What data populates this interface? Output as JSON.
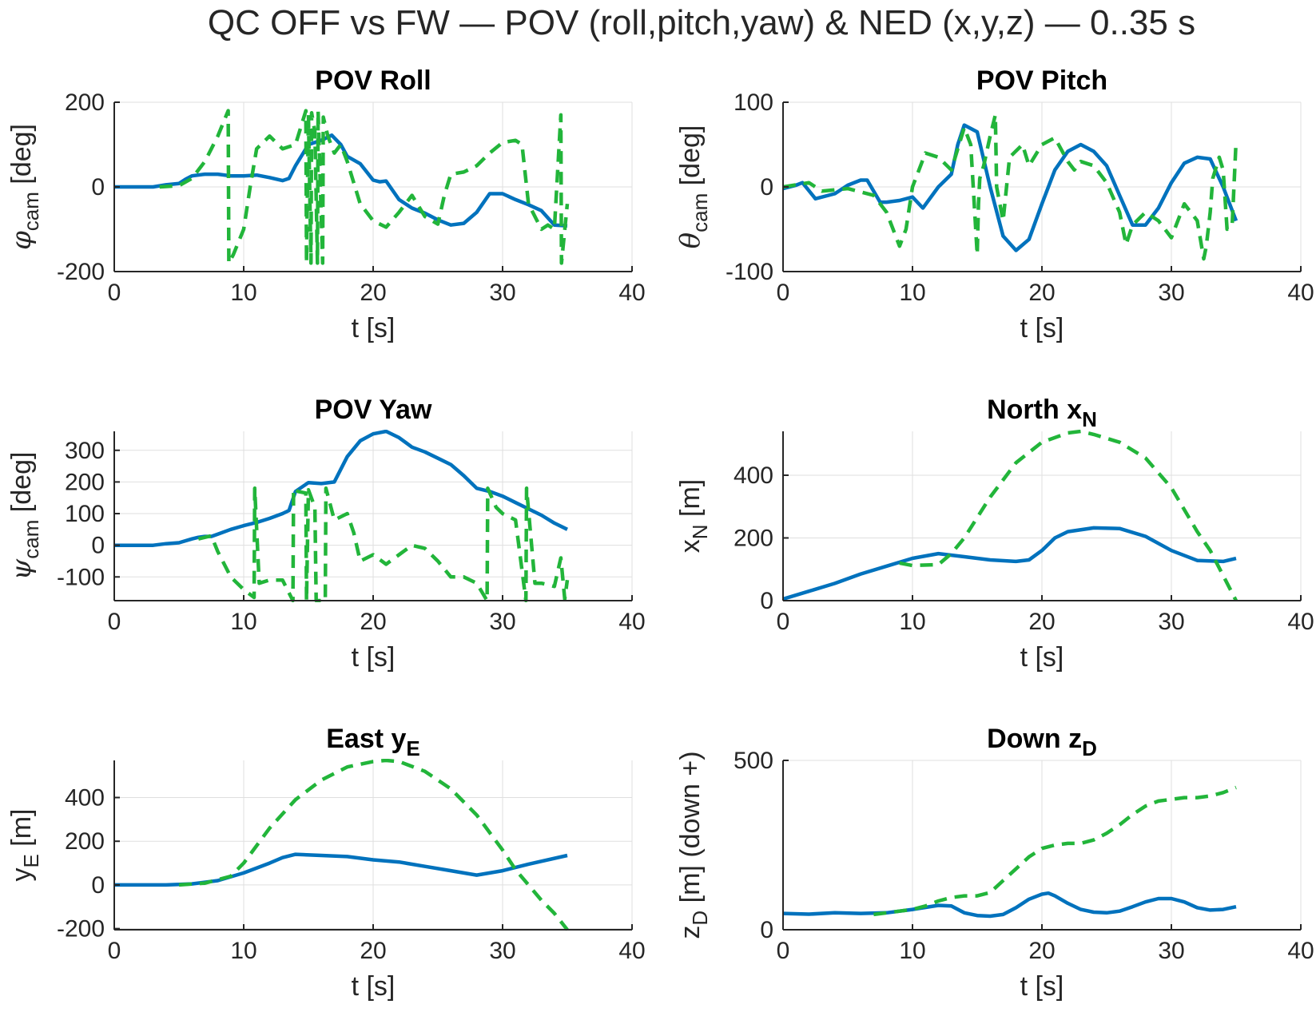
{
  "figure": {
    "title": "QC OFF vs FW — POV (roll,pitch,yaw) & NED (x,y,z) — 0..35 s"
  },
  "colors": {
    "qc_off": "#0072BD",
    "fw": "#22B53A",
    "axis": "#262626",
    "grid": "#dfdfdf"
  },
  "chart_data": [
    {
      "id": "roll",
      "type": "line",
      "title": "POV Roll",
      "title_sub": "",
      "xlabel": "t [s]",
      "ylabel_parts": [
        [
          "φ",
          "sym"
        ],
        [
          "cam",
          "sub"
        ],
        [
          " [deg]",
          "n"
        ]
      ],
      "xlim": [
        0,
        40
      ],
      "ylim": [
        -200,
        200
      ],
      "xticks": [
        0,
        10,
        20,
        30,
        40
      ],
      "xtick_labels": [
        "0",
        "10",
        "20",
        "30",
        "40"
      ],
      "yticks": [
        -200,
        0,
        200
      ],
      "ytick_labels": [
        "-200",
        "0",
        "200"
      ],
      "grid": true,
      "series": [
        {
          "style": "solid",
          "color": "#0072BD",
          "x": [
            0,
            3,
            4,
            5,
            5.5,
            6,
            7,
            8,
            9,
            10,
            11,
            12,
            13,
            13.5,
            14,
            15,
            16,
            16.8,
            17.5,
            18,
            19,
            20,
            20.5,
            21,
            22,
            23,
            24,
            25,
            26,
            27,
            28,
            29,
            30,
            31,
            32,
            33,
            34,
            35
          ],
          "y": [
            0,
            0,
            5,
            8,
            18,
            26,
            30,
            30,
            26,
            26,
            28,
            22,
            15,
            20,
            50,
            100,
            110,
            122,
            100,
            72,
            55,
            16,
            12,
            14,
            -30,
            -50,
            -62,
            -78,
            -90,
            -86,
            -60,
            -16,
            -16,
            -30,
            -42,
            -56,
            -90,
            -92
          ]
        },
        {
          "style": "dash",
          "color": "#22B53A",
          "x": [
            3.5,
            5,
            6,
            7,
            8,
            8.8,
            8.85,
            9.2,
            10,
            10.5,
            11,
            12,
            13,
            14,
            14.8,
            14.85,
            15,
            15.2,
            15.25,
            15.5,
            15.7,
            15.75,
            16.1,
            16.15,
            16.5,
            17,
            17.5,
            18,
            19,
            20,
            21,
            22,
            23,
            24,
            25,
            25.5,
            26,
            27,
            28,
            29,
            30,
            31,
            31.5,
            32,
            33,
            33.5,
            34,
            34.5,
            34.55,
            35
          ],
          "y": [
            0,
            3,
            20,
            60,
            120,
            180,
            -180,
            -160,
            -100,
            0,
            90,
            120,
            90,
            100,
            180,
            -180,
            170,
            -180,
            175,
            130,
            -180,
            180,
            -180,
            165,
            120,
            80,
            100,
            60,
            -40,
            -80,
            -95,
            -60,
            -20,
            -70,
            -88,
            -20,
            30,
            35,
            50,
            80,
            105,
            110,
            100,
            -40,
            -100,
            -90,
            -100,
            170,
            -180,
            -40
          ]
        }
      ]
    },
    {
      "id": "pitch",
      "type": "line",
      "title": "POV Pitch",
      "title_sub": "",
      "xlabel": "t [s]",
      "ylabel_parts": [
        [
          "θ",
          "sym"
        ],
        [
          "cam",
          "sub"
        ],
        [
          " [deg]",
          "n"
        ]
      ],
      "xlim": [
        0,
        40
      ],
      "ylim": [
        -100,
        100
      ],
      "xticks": [
        0,
        10,
        20,
        30,
        40
      ],
      "xtick_labels": [
        "0",
        "10",
        "20",
        "30",
        "40"
      ],
      "yticks": [
        -100,
        0,
        100
      ],
      "ytick_labels": [
        "-100",
        "0",
        "100"
      ],
      "grid": true,
      "series": [
        {
          "style": "solid",
          "color": "#0072BD",
          "x": [
            0,
            1,
            1.5,
            2.5,
            4,
            5,
            6,
            6.5,
            7.5,
            8,
            9,
            10,
            10.8,
            12,
            13,
            13.5,
            14,
            15,
            16,
            17,
            18,
            19,
            20,
            21,
            22,
            23,
            24,
            25,
            26,
            27,
            28,
            29,
            30,
            31,
            32,
            33,
            34,
            35
          ],
          "y": [
            -2,
            2,
            5,
            -14,
            -8,
            2,
            8,
            8,
            -18,
            -18,
            -16,
            -12,
            -25,
            0,
            15,
            50,
            73,
            65,
            0,
            -58,
            -75,
            -62,
            -20,
            20,
            42,
            50,
            42,
            25,
            -10,
            -45,
            -45,
            -25,
            5,
            28,
            35,
            33,
            0,
            -40
          ]
        },
        {
          "style": "dash",
          "color": "#22B53A",
          "x": [
            0,
            2,
            3,
            5,
            7,
            8,
            9,
            9.5,
            10,
            11,
            12,
            13,
            14,
            14.5,
            15,
            15.1,
            15.2,
            15.5,
            16,
            16.4,
            16.5,
            17,
            17.5,
            18.5,
            19,
            20,
            21,
            22,
            22.5,
            23,
            24,
            25,
            26,
            26.5,
            27,
            28,
            29,
            30,
            31,
            32,
            32.5,
            32.7,
            33,
            33.2,
            33.7,
            34,
            34.3,
            34.7,
            35
          ],
          "y": [
            0,
            5,
            -5,
            -2,
            -10,
            -30,
            -70,
            -50,
            0,
            40,
            35,
            20,
            70,
            50,
            -80,
            -20,
            10,
            25,
            60,
            85,
            0,
            -40,
            35,
            50,
            25,
            50,
            58,
            30,
            20,
            30,
            25,
            5,
            -30,
            -68,
            -45,
            -30,
            -40,
            -60,
            -20,
            -40,
            -85,
            -70,
            -30,
            10,
            35,
            20,
            -50,
            -45,
            55
          ]
        }
      ]
    },
    {
      "id": "yaw",
      "type": "line",
      "title": "POV Yaw",
      "title_sub": "",
      "xlabel": "t [s]",
      "ylabel_parts": [
        [
          "ψ",
          "sym"
        ],
        [
          "cam",
          "sub"
        ],
        [
          " [deg]",
          "n"
        ]
      ],
      "xlim": [
        0,
        40
      ],
      "ylim": [
        -175,
        360
      ],
      "xticks": [
        0,
        10,
        20,
        30,
        40
      ],
      "xtick_labels": [
        "0",
        "10",
        "20",
        "30",
        "40"
      ],
      "yticks": [
        -100,
        0,
        100,
        200,
        300
      ],
      "ytick_labels": [
        "-100",
        "0",
        "100",
        "200",
        "300"
      ],
      "grid": true,
      "series": [
        {
          "style": "solid",
          "color": "#0072BD",
          "x": [
            0,
            3,
            4,
            5,
            6,
            6.5,
            7,
            7.5,
            8,
            9,
            10,
            11,
            12,
            13,
            13.5,
            14,
            15,
            16,
            17,
            18,
            19,
            20,
            21,
            22,
            23,
            24,
            25,
            26,
            27,
            28,
            29,
            30,
            31,
            32,
            33,
            34,
            35
          ],
          "y": [
            0,
            0,
            5,
            8,
            20,
            25,
            28,
            28,
            35,
            50,
            62,
            72,
            85,
            100,
            110,
            170,
            198,
            195,
            200,
            280,
            330,
            352,
            360,
            340,
            310,
            295,
            275,
            255,
            220,
            180,
            170,
            155,
            135,
            115,
            95,
            70,
            50
          ]
        },
        {
          "style": "dash",
          "color": "#22B53A",
          "x": [
            6.5,
            7.5,
            8,
            9,
            10,
            10.8,
            10.85,
            11.2,
            12,
            13,
            13.8,
            13.85,
            14.2,
            14.8,
            14.85,
            15,
            15.5,
            15.6,
            16.3,
            16.35,
            17,
            18,
            18.5,
            19,
            20,
            21,
            22,
            23,
            24,
            25,
            26,
            27,
            28,
            28.8,
            28.85,
            29.5,
            30,
            31,
            31.8,
            31.85,
            32.5,
            33,
            34,
            34.5,
            34.8,
            35
          ],
          "y": [
            20,
            30,
            -20,
            -100,
            -140,
            -165,
            180,
            -120,
            -110,
            -110,
            -175,
            180,
            170,
            165,
            -175,
            175,
            120,
            -175,
            -175,
            180,
            80,
            100,
            40,
            -50,
            -30,
            -60,
            -30,
            0,
            -10,
            -50,
            -100,
            -100,
            -120,
            -175,
            180,
            120,
            100,
            80,
            -175,
            180,
            -120,
            -120,
            -130,
            -40,
            -170,
            -110
          ]
        }
      ]
    },
    {
      "id": "north",
      "type": "line",
      "title": "North x",
      "title_sub": "N",
      "xlabel": "t [s]",
      "ylabel_parts": [
        [
          "x",
          "n"
        ],
        [
          "N",
          "sub"
        ],
        [
          " [m]",
          "n"
        ]
      ],
      "xlim": [
        0,
        40
      ],
      "ylim": [
        0,
        540
      ],
      "xticks": [
        0,
        10,
        20,
        30,
        40
      ],
      "xtick_labels": [
        "0",
        "10",
        "20",
        "30",
        "40"
      ],
      "yticks": [
        0,
        200,
        400
      ],
      "ytick_labels": [
        "0",
        "200",
        "400"
      ],
      "grid": true,
      "series": [
        {
          "style": "solid",
          "color": "#0072BD",
          "x": [
            0,
            2,
            4,
            6,
            8,
            10,
            12,
            14,
            16,
            18,
            19,
            20,
            21,
            22,
            24,
            26,
            28,
            30,
            32,
            34,
            35
          ],
          "y": [
            5,
            30,
            55,
            85,
            110,
            135,
            150,
            140,
            130,
            125,
            130,
            160,
            200,
            220,
            232,
            230,
            205,
            160,
            128,
            125,
            135
          ]
        },
        {
          "style": "dash",
          "color": "#22B53A",
          "x": [
            9,
            10,
            12,
            13,
            14,
            16,
            18,
            20,
            22,
            23,
            24,
            26,
            28,
            30,
            32,
            33,
            34,
            35
          ],
          "y": [
            120,
            112,
            115,
            150,
            200,
            330,
            440,
            505,
            535,
            540,
            530,
            505,
            455,
            360,
            220,
            160,
            80,
            0
          ]
        }
      ]
    },
    {
      "id": "east",
      "type": "line",
      "title": "East y",
      "title_sub": "E",
      "xlabel": "t [s]",
      "ylabel_parts": [
        [
          "y",
          "n"
        ],
        [
          "E",
          "sub"
        ],
        [
          " [m]",
          "n"
        ]
      ],
      "xlim": [
        0,
        40
      ],
      "ylim": [
        -205,
        570
      ],
      "xticks": [
        0,
        10,
        20,
        30,
        40
      ],
      "xtick_labels": [
        "0",
        "10",
        "20",
        "30",
        "40"
      ],
      "yticks": [
        -200,
        0,
        200,
        400
      ],
      "ytick_labels": [
        "-200",
        "0",
        "200",
        "400"
      ],
      "grid": true,
      "series": [
        {
          "style": "solid",
          "color": "#0072BD",
          "x": [
            0,
            4,
            6,
            8,
            10,
            12,
            13,
            14,
            16,
            18,
            20,
            22,
            24,
            26,
            28,
            30,
            32,
            35
          ],
          "y": [
            0,
            0,
            5,
            20,
            55,
            100,
            125,
            140,
            135,
            130,
            115,
            105,
            85,
            65,
            45,
            65,
            95,
            135
          ]
        },
        {
          "style": "dash",
          "color": "#22B53A",
          "x": [
            5,
            7,
            9,
            10,
            12,
            14,
            16,
            18,
            20,
            21,
            22,
            24,
            26,
            28,
            30,
            31,
            32,
            33,
            34,
            35
          ],
          "y": [
            0,
            8,
            40,
            100,
            260,
            390,
            480,
            540,
            565,
            570,
            565,
            520,
            440,
            320,
            160,
            70,
            0,
            -70,
            -130,
            -205
          ]
        }
      ]
    },
    {
      "id": "down",
      "type": "line",
      "title": "Down z",
      "title_sub": "D",
      "xlabel": "t [s]",
      "ylabel_parts": [
        [
          "z",
          "n"
        ],
        [
          "D",
          "sub"
        ],
        [
          " [m] (down +)",
          "n"
        ]
      ],
      "xlim": [
        0,
        40
      ],
      "ylim": [
        0,
        500
      ],
      "xticks": [
        0,
        10,
        20,
        30,
        40
      ],
      "xtick_labels": [
        "0",
        "10",
        "20",
        "30",
        "40"
      ],
      "yticks": [
        0,
        500
      ],
      "ytick_labels": [
        "0",
        "500"
      ],
      "grid": true,
      "series": [
        {
          "style": "solid",
          "color": "#0072BD",
          "x": [
            0,
            2,
            4,
            6,
            8,
            10,
            12,
            13,
            14,
            15,
            16,
            17,
            18,
            19,
            20,
            20.5,
            21,
            22,
            23,
            24,
            25,
            26,
            27,
            28,
            29,
            30,
            31,
            32,
            33,
            34,
            35
          ],
          "y": [
            48,
            46,
            50,
            48,
            50,
            60,
            72,
            70,
            50,
            42,
            40,
            45,
            65,
            90,
            105,
            108,
            100,
            78,
            60,
            52,
            50,
            55,
            68,
            82,
            92,
            92,
            82,
            65,
            58,
            60,
            68
          ]
        },
        {
          "style": "dash",
          "color": "#22B53A",
          "x": [
            7,
            8,
            9,
            10,
            11,
            12,
            13,
            14,
            15,
            16,
            17,
            18,
            19,
            20,
            21,
            22,
            23,
            24,
            25,
            26,
            27,
            28,
            29,
            30,
            31,
            32,
            33,
            34,
            35
          ],
          "y": [
            45,
            50,
            55,
            60,
            70,
            85,
            95,
            100,
            100,
            110,
            145,
            180,
            215,
            240,
            250,
            255,
            255,
            265,
            285,
            310,
            340,
            365,
            380,
            385,
            390,
            390,
            395,
            405,
            420
          ]
        }
      ]
    }
  ]
}
